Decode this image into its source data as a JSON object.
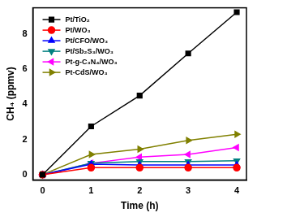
{
  "chart_data": {
    "type": "line",
    "x_label": "Time (h)",
    "y_label": "CH₄ (ppmv)",
    "x": [
      0,
      1,
      2,
      3,
      4
    ],
    "xlim": [
      -0.2,
      4.2
    ],
    "xticks": [
      0,
      1,
      2,
      3,
      4
    ],
    "ylim": [
      -0.3,
      9.5
    ],
    "yticks": [
      0,
      2,
      4,
      6,
      8
    ],
    "grid": false,
    "legend": "upper left",
    "series": [
      {
        "name": "Pt/TiO₂",
        "color": "#000000",
        "marker": "square",
        "values": [
          0,
          2.75,
          4.5,
          6.9,
          9.25
        ]
      },
      {
        "name": "Pt/WO₃",
        "color": "#ff0000",
        "marker": "circle",
        "values": [
          0,
          0.4,
          0.4,
          0.4,
          0.4
        ]
      },
      {
        "name": "Pt/CFO/WO₃",
        "color": "#0000ff",
        "marker": "triangle_up",
        "values": [
          0,
          0.6,
          0.55,
          0.55,
          0.55
        ]
      },
      {
        "name": "Pt/Sb₂S₃/WO₃",
        "color": "#008080",
        "marker": "triangle_down",
        "values": [
          0,
          0.65,
          0.75,
          0.75,
          0.8
        ]
      },
      {
        "name": "Pt-g-C₃N₄/WO₃",
        "color": "#ff00ff",
        "marker": "triangle_left",
        "values": [
          0,
          0.65,
          1.0,
          1.15,
          1.55
        ]
      },
      {
        "name": "Pt-CdS/WO₃",
        "color": "#808000",
        "marker": "triangle_right",
        "values": [
          0,
          1.15,
          1.45,
          1.95,
          2.3
        ]
      }
    ]
  }
}
